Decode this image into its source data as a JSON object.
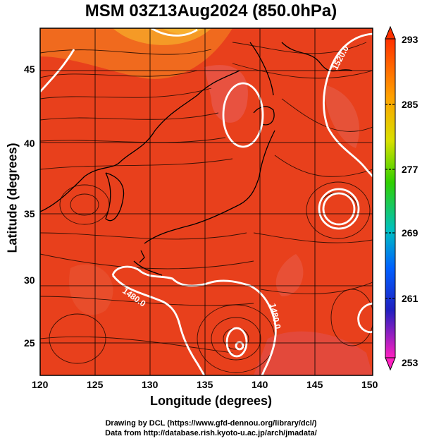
{
  "title": "MSM 03Z13Aug2024 (850.0hPa)",
  "xlabel": "Longitude (degrees)",
  "ylabel": "Latitude  (degrees)",
  "xticks": [
    "120",
    "125",
    "130",
    "135",
    "140",
    "145",
    "150"
  ],
  "yticks": [
    "25",
    "30",
    "35",
    "40",
    "45"
  ],
  "colorbar": {
    "ticks": [
      "293",
      "285",
      "277",
      "269",
      "261",
      "253"
    ]
  },
  "contour_labels": [
    "1520.0",
    "1480.0",
    "1480.0"
  ],
  "credits": {
    "line1": "Drawing by DCL (https://www.gfd-dennou.org/library/dcl/)",
    "line2": "Data from http://database.rish.kyoto-u.ac.jp/arch/jmadata/"
  },
  "colors": {
    "field": "#e8401c",
    "warm": "#f07020",
    "cool_patch": "#e85050",
    "contour": "#ffffff"
  }
}
